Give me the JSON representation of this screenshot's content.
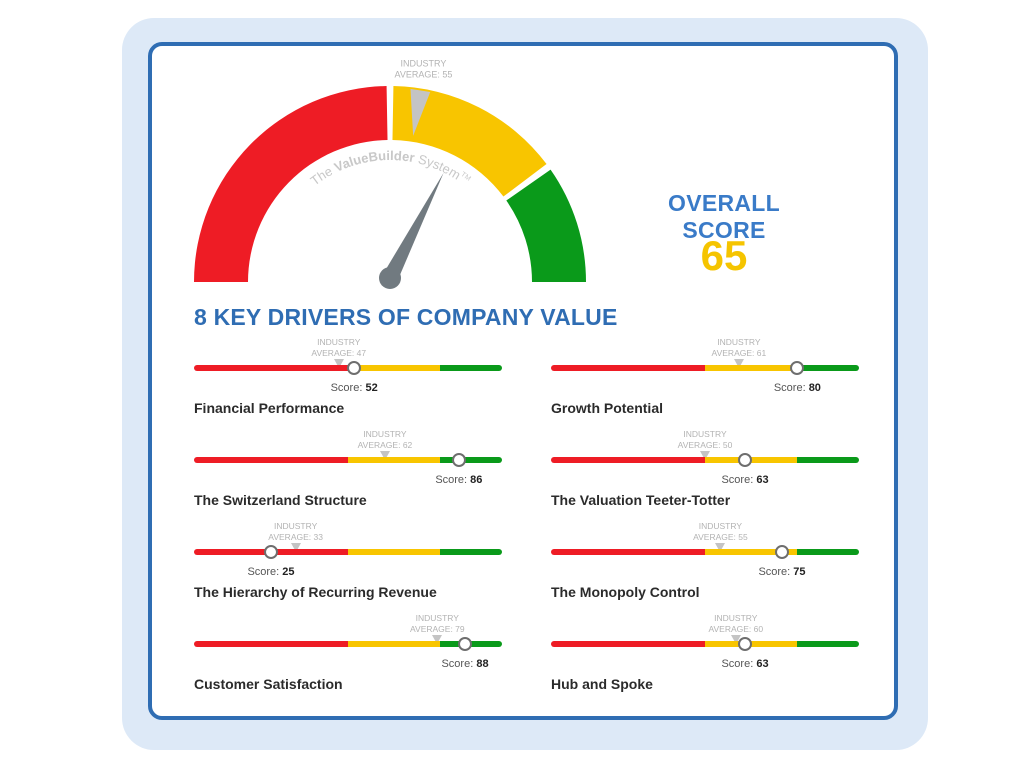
{
  "gauge": {
    "industry_label": "INDUSTRY",
    "industry_average_label": "AVERAGE: 55",
    "industry_average": 55,
    "score": 65,
    "brand_text_prefix": "The ",
    "brand_text_bold": "ValueBuilder",
    "brand_text_suffix": " System",
    "brand_tm": "TM",
    "colors": {
      "red": "#ee1c25",
      "yellow": "#f8c500",
      "green": "#0a9a1a",
      "needle": "#717a80"
    }
  },
  "overall": {
    "label": "OVERALL SCORE",
    "value": "65"
  },
  "drivers_title": "8 KEY DRIVERS OF COMPANY VALUE",
  "score_prefix": "Score:",
  "drivers": [
    {
      "name": "Financial Performance",
      "industry_label": "INDUSTRY",
      "industry_text": "AVERAGE: 47",
      "industry": 47,
      "score_text": "52",
      "score": 52
    },
    {
      "name": "Growth Potential",
      "industry_label": "INDUSTRY",
      "industry_text": "AVERAGE: 61",
      "industry": 61,
      "score_text": "80",
      "score": 80
    },
    {
      "name": "The Switzerland Structure",
      "industry_label": "INDUSTRY",
      "industry_text": "AVERAGE: 62",
      "industry": 62,
      "score_text": "86",
      "score": 86
    },
    {
      "name": "The Valuation Teeter-Totter",
      "industry_label": "INDUSTRY",
      "industry_text": "AVERAGE: 50",
      "industry": 50,
      "score_text": "63",
      "score": 63
    },
    {
      "name": "The Hierarchy of Recurring Revenue",
      "industry_label": "INDUSTRY",
      "industry_text": "AVERAGE: 33",
      "industry": 33,
      "score_text": "25",
      "score": 25
    },
    {
      "name": "The Monopoly Control",
      "industry_label": "INDUSTRY",
      "industry_text": "AVERAGE: 55",
      "industry": 55,
      "score_text": "75",
      "score": 75
    },
    {
      "name": "Customer Satisfaction",
      "industry_label": "INDUSTRY",
      "industry_text": "AVERAGE: 79",
      "industry": 79,
      "score_text": "88",
      "score": 88
    },
    {
      "name": "Hub and Spoke",
      "industry_label": "INDUSTRY",
      "industry_text": "AVERAGE: 60",
      "industry": 60,
      "score_text": "63",
      "score": 63
    }
  ]
}
